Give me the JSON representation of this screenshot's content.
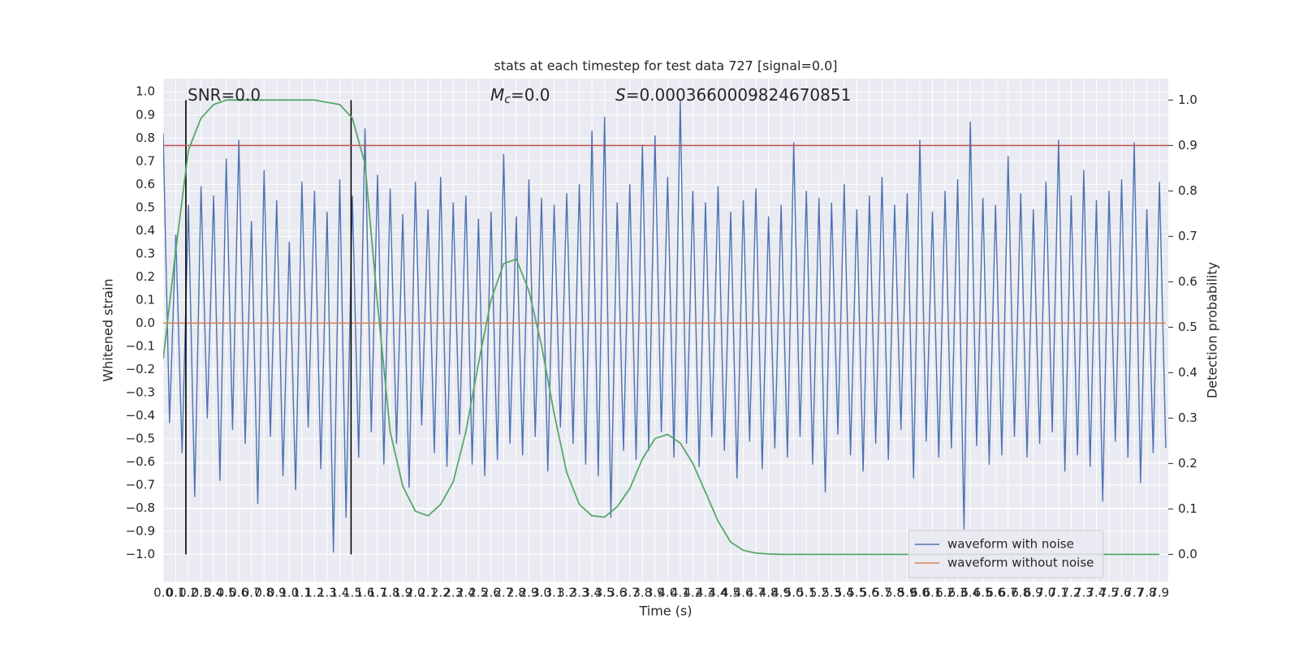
{
  "chart_data": {
    "type": "line",
    "title": "stats at each timestep for test data 727 [signal=0.0]",
    "xlabel": "Time (s)",
    "ylabel": "Whitened strain",
    "y2label": "Detection probability",
    "annotations": [
      {
        "text": "SNR=0.0"
      },
      {
        "symbol": "M",
        "subscript": "c",
        "text": "=0.0"
      },
      {
        "symbol": "S",
        "text": "=0.0003660009824670851"
      }
    ],
    "xlim": [
      0,
      7.97
    ],
    "ylim": [
      -1.118,
      1.057
    ],
    "y2lim": [
      -0.06,
      1.047
    ],
    "grid": true,
    "legend": "lower right",
    "threshold": 0.9,
    "threshold_color": "#c44e52",
    "vlines": [
      0.18,
      1.49
    ],
    "vline_span": [
      0,
      1
    ],
    "vline_color": "#000000",
    "xticks": [
      {
        "value": 0.0,
        "label": "0.0"
      },
      {
        "value": 0.1,
        "label": "0.1"
      },
      {
        "value": 0.2,
        "label": "0.2"
      },
      {
        "value": 0.3,
        "label": "0.3"
      },
      {
        "value": 0.4,
        "label": "0.4"
      },
      {
        "value": 0.5,
        "label": "0.5"
      },
      {
        "value": 0.6,
        "label": "0.6"
      },
      {
        "value": 0.7,
        "label": "0.7"
      },
      {
        "value": 0.8,
        "label": "0.8"
      },
      {
        "value": 0.9,
        "label": "0.9"
      },
      {
        "value": 1.0,
        "label": "1.0"
      },
      {
        "value": 1.1,
        "label": "1.1"
      },
      {
        "value": 1.2,
        "label": "1.2"
      },
      {
        "value": 1.3,
        "label": "1.3"
      },
      {
        "value": 1.4,
        "label": "1.4"
      },
      {
        "value": 1.5,
        "label": "1.5"
      },
      {
        "value": 1.6,
        "label": "1.6"
      },
      {
        "value": 1.7,
        "label": "1.7"
      },
      {
        "value": 1.8,
        "label": "1.8"
      },
      {
        "value": 1.9,
        "label": "1.9"
      },
      {
        "value": 2.0,
        "label": "2.0"
      },
      {
        "value": 2.1,
        "label": "2.1"
      },
      {
        "value": 2.2,
        "label": "2.2"
      },
      {
        "value": 2.3,
        "label": "2.3"
      },
      {
        "value": 2.4,
        "label": "2.4"
      },
      {
        "value": 2.5,
        "label": "2.5"
      },
      {
        "value": 2.6,
        "label": "2.6"
      },
      {
        "value": 2.7,
        "label": "2.7"
      },
      {
        "value": 2.8,
        "label": "2.8"
      },
      {
        "value": 2.9,
        "label": "2.9"
      },
      {
        "value": 3.0,
        "label": "3.0"
      },
      {
        "value": 3.1,
        "label": "3.1"
      },
      {
        "value": 3.2,
        "label": "3.2"
      },
      {
        "value": 3.3,
        "label": "3.3"
      },
      {
        "value": 3.4,
        "label": "3.4"
      },
      {
        "value": 3.5,
        "label": "3.5"
      },
      {
        "value": 3.6,
        "label": "3.6"
      },
      {
        "value": 3.7,
        "label": "3.7"
      },
      {
        "value": 3.8,
        "label": "3.8"
      },
      {
        "value": 3.9,
        "label": "3.9"
      },
      {
        "value": 4.0,
        "label": "4.0"
      },
      {
        "value": 4.1,
        "label": "4.1"
      },
      {
        "value": 4.2,
        "label": "4.2"
      },
      {
        "value": 4.3,
        "label": "4.3"
      },
      {
        "value": 4.4,
        "label": "4.4"
      },
      {
        "value": 4.5,
        "label": "4.5"
      },
      {
        "value": 4.6,
        "label": "4.6"
      },
      {
        "value": 4.7,
        "label": "4.7"
      },
      {
        "value": 4.8,
        "label": "4.8"
      },
      {
        "value": 4.9,
        "label": "4.9"
      },
      {
        "value": 5.0,
        "label": "5.0"
      },
      {
        "value": 5.1,
        "label": "5.1"
      },
      {
        "value": 5.2,
        "label": "5.2"
      },
      {
        "value": 5.3,
        "label": "5.3"
      },
      {
        "value": 5.4,
        "label": "5.4"
      },
      {
        "value": 5.5,
        "label": "5.5"
      },
      {
        "value": 5.6,
        "label": "5.6"
      },
      {
        "value": 5.7,
        "label": "5.7"
      },
      {
        "value": 5.8,
        "label": "5.8"
      },
      {
        "value": 5.9,
        "label": "5.9"
      },
      {
        "value": 6.0,
        "label": "6.0"
      },
      {
        "value": 6.1,
        "label": "6.1"
      },
      {
        "value": 6.2,
        "label": "6.2"
      },
      {
        "value": 6.3,
        "label": "6.3"
      },
      {
        "value": 6.4,
        "label": "6.4"
      },
      {
        "value": 6.5,
        "label": "6.5"
      },
      {
        "value": 6.6,
        "label": "6.6"
      },
      {
        "value": 6.7,
        "label": "6.7"
      },
      {
        "value": 6.8,
        "label": "6.8"
      },
      {
        "value": 6.9,
        "label": "6.9"
      },
      {
        "value": 7.0,
        "label": "7.0"
      },
      {
        "value": 7.1,
        "label": "7.1"
      },
      {
        "value": 7.2,
        "label": "7.2"
      },
      {
        "value": 7.3,
        "label": "7.3"
      },
      {
        "value": 7.4,
        "label": "7.4"
      },
      {
        "value": 7.5,
        "label": "7.5"
      },
      {
        "value": 7.6,
        "label": "7.6"
      },
      {
        "value": 7.7,
        "label": "7.7"
      },
      {
        "value": 7.8,
        "label": "7.8"
      },
      {
        "value": 7.9,
        "label": "7.9"
      }
    ],
    "yticks": [
      {
        "value": -1.0,
        "label": "−1.0"
      },
      {
        "value": -0.9,
        "label": "−0.9"
      },
      {
        "value": -0.8,
        "label": "−0.8"
      },
      {
        "value": -0.7,
        "label": "−0.7"
      },
      {
        "value": -0.6,
        "label": "−0.6"
      },
      {
        "value": -0.5,
        "label": "−0.5"
      },
      {
        "value": -0.4,
        "label": "−0.4"
      },
      {
        "value": -0.3,
        "label": "−0.3"
      },
      {
        "value": -0.2,
        "label": "−0.2"
      },
      {
        "value": -0.1,
        "label": "−0.1"
      },
      {
        "value": 0.0,
        "label": "0.0"
      },
      {
        "value": 0.1,
        "label": "0.1"
      },
      {
        "value": 0.2,
        "label": "0.2"
      },
      {
        "value": 0.3,
        "label": "0.3"
      },
      {
        "value": 0.4,
        "label": "0.4"
      },
      {
        "value": 0.5,
        "label": "0.5"
      },
      {
        "value": 0.6,
        "label": "0.6"
      },
      {
        "value": 0.7,
        "label": "0.7"
      },
      {
        "value": 0.8,
        "label": "0.8"
      },
      {
        "value": 0.9,
        "label": "0.9"
      },
      {
        "value": 1.0,
        "label": "1.0"
      }
    ],
    "y2ticks": [
      {
        "value": 0.0,
        "label": "0.0"
      },
      {
        "value": 0.1,
        "label": "0.1"
      },
      {
        "value": 0.2,
        "label": "0.2"
      },
      {
        "value": 0.3,
        "label": "0.3"
      },
      {
        "value": 0.4,
        "label": "0.4"
      },
      {
        "value": 0.5,
        "label": "0.5"
      },
      {
        "value": 0.6,
        "label": "0.6"
      },
      {
        "value": 0.7,
        "label": "0.7"
      },
      {
        "value": 0.8,
        "label": "0.8"
      },
      {
        "value": 0.9,
        "label": "0.9"
      },
      {
        "value": 1.0,
        "label": "1.0"
      }
    ],
    "series": [
      {
        "name": "waveform with noise",
        "color": "#4c72b0",
        "x": [
          0.0,
          0.05,
          0.1,
          0.15,
          0.2,
          0.25,
          0.3,
          0.35,
          0.4,
          0.45,
          0.5,
          0.55,
          0.6,
          0.65,
          0.7,
          0.75,
          0.8,
          0.85,
          0.9,
          0.95,
          1.0,
          1.05,
          1.1,
          1.15,
          1.2,
          1.25,
          1.3,
          1.35,
          1.4,
          1.45,
          1.5,
          1.55,
          1.6,
          1.65,
          1.7,
          1.75,
          1.8,
          1.85,
          1.9,
          1.95,
          2.0,
          2.05,
          2.1,
          2.15,
          2.2,
          2.25,
          2.3,
          2.35,
          2.4,
          2.45,
          2.5,
          2.55,
          2.6,
          2.65,
          2.7,
          2.75,
          2.8,
          2.85,
          2.9,
          2.95,
          3.0,
          3.05,
          3.1,
          3.15,
          3.2,
          3.25,
          3.3,
          3.35,
          3.4,
          3.45,
          3.5,
          3.55,
          3.6,
          3.65,
          3.7,
          3.75,
          3.8,
          3.85,
          3.9,
          3.95,
          4.0,
          4.05,
          4.1,
          4.15,
          4.2,
          4.25,
          4.3,
          4.35,
          4.4,
          4.45,
          4.5,
          4.55,
          4.6,
          4.65,
          4.7,
          4.75,
          4.8,
          4.85,
          4.9,
          4.95,
          5.0,
          5.05,
          5.1,
          5.15,
          5.2,
          5.25,
          5.3,
          5.35,
          5.4,
          5.45,
          5.5,
          5.55,
          5.6,
          5.65,
          5.7,
          5.75,
          5.8,
          5.85,
          5.9,
          5.95,
          6.0,
          6.05,
          6.1,
          6.15,
          6.2,
          6.25,
          6.3,
          6.35,
          6.4,
          6.45,
          6.5,
          6.55,
          6.6,
          6.65,
          6.7,
          6.75,
          6.8,
          6.85,
          6.9,
          6.95,
          7.0,
          7.05,
          7.1,
          7.15,
          7.2,
          7.25,
          7.3,
          7.35,
          7.4,
          7.45,
          7.5,
          7.55,
          7.6,
          7.65,
          7.7,
          7.75,
          7.8,
          7.85,
          7.9,
          7.95
        ],
        "values": [
          0.82,
          -0.43,
          0.38,
          -0.56,
          0.51,
          -0.75,
          0.59,
          -0.41,
          0.55,
          -0.68,
          0.71,
          -0.46,
          0.79,
          -0.52,
          0.44,
          -0.78,
          0.66,
          -0.49,
          0.53,
          -0.66,
          0.35,
          -0.72,
          0.61,
          -0.45,
          0.57,
          -0.63,
          0.48,
          -0.99,
          0.62,
          -0.84,
          0.55,
          -0.58,
          0.84,
          -0.47,
          0.64,
          -0.61,
          0.58,
          -0.52,
          0.47,
          -0.71,
          0.61,
          -0.44,
          0.49,
          -0.56,
          0.63,
          -0.62,
          0.52,
          -0.48,
          0.55,
          -0.61,
          0.45,
          -0.66,
          0.48,
          -0.59,
          0.73,
          -0.52,
          0.46,
          -0.57,
          0.62,
          -0.49,
          0.54,
          -0.64,
          0.51,
          -0.45,
          0.56,
          -0.52,
          0.6,
          -0.61,
          0.83,
          -0.66,
          0.89,
          -0.84,
          0.52,
          -0.55,
          0.6,
          -0.59,
          0.77,
          -0.55,
          0.81,
          -0.47,
          0.63,
          -0.58,
          0.96,
          -0.52,
          0.57,
          -0.62,
          0.52,
          -0.49,
          0.59,
          -0.55,
          0.48,
          -0.67,
          0.53,
          -0.51,
          0.58,
          -0.63,
          0.46,
          -0.54,
          0.51,
          -0.58,
          0.78,
          -0.49,
          0.57,
          -0.61,
          0.54,
          -0.73,
          0.52,
          -0.48,
          0.6,
          -0.57,
          0.49,
          -0.64,
          0.55,
          -0.52,
          0.63,
          -0.59,
          0.51,
          -0.46,
          0.56,
          -0.67,
          0.79,
          -0.51,
          0.48,
          -0.58,
          0.57,
          -0.54,
          0.62,
          -0.89,
          0.87,
          -0.53,
          0.54,
          -0.61,
          0.51,
          -0.57,
          0.72,
          -0.49,
          0.56,
          -0.58,
          0.49,
          -0.52,
          0.61,
          -0.47,
          0.79,
          -0.64,
          0.55,
          -0.57,
          0.66,
          -0.62,
          0.53,
          -0.77,
          0.57,
          -0.51,
          0.62,
          -0.58,
          0.78,
          -0.69,
          0.49,
          -0.56,
          0.61,
          -0.54
        ]
      },
      {
        "name": "waveform without noise",
        "color": "#dd8452",
        "x": [
          0.0,
          7.95
        ],
        "values": [
          0.0,
          0.0
        ]
      },
      {
        "color": "#55a868",
        "axis": "y2",
        "x": [
          0.0,
          0.1,
          0.2,
          0.3,
          0.4,
          0.5,
          0.6,
          0.7,
          0.8,
          0.9,
          1.0,
          1.1,
          1.2,
          1.3,
          1.4,
          1.5,
          1.6,
          1.7,
          1.8,
          1.9,
          2.0,
          2.1,
          2.2,
          2.3,
          2.4,
          2.5,
          2.6,
          2.7,
          2.8,
          2.9,
          3.0,
          3.1,
          3.2,
          3.3,
          3.4,
          3.5,
          3.6,
          3.7,
          3.8,
          3.9,
          4.0,
          4.1,
          4.2,
          4.3,
          4.4,
          4.5,
          4.6,
          4.7,
          4.8,
          4.9,
          5.0,
          5.1,
          5.2,
          5.3,
          5.4,
          5.5,
          5.6,
          5.7,
          5.8,
          5.9,
          6.0,
          6.1,
          6.2,
          6.3,
          6.4,
          6.5,
          6.6,
          6.7,
          6.8,
          6.9,
          7.0,
          7.1,
          7.2,
          7.3,
          7.4,
          7.5,
          7.6,
          7.7,
          7.8,
          7.9
        ],
        "values": [
          0.43,
          0.67,
          0.89,
          0.96,
          0.99,
          1.0,
          1.0,
          1.0,
          1.0,
          1.0,
          1.0,
          1.0,
          1.0,
          0.995,
          0.99,
          0.96,
          0.86,
          0.55,
          0.27,
          0.15,
          0.095,
          0.085,
          0.11,
          0.16,
          0.27,
          0.42,
          0.56,
          0.64,
          0.65,
          0.58,
          0.46,
          0.31,
          0.18,
          0.11,
          0.085,
          0.082,
          0.105,
          0.145,
          0.21,
          0.255,
          0.264,
          0.245,
          0.2,
          0.137,
          0.073,
          0.027,
          0.009,
          0.003,
          0.001,
          0.0,
          0.0,
          0.0,
          0.0,
          0.0,
          0.0,
          0.0,
          0.0,
          0.0,
          0.0,
          0.0,
          0.0,
          0.0,
          0.0,
          0.0,
          0.0,
          0.0,
          0.0,
          0.0,
          0.0,
          0.0,
          0.0,
          0.0,
          0.0,
          0.0,
          0.0,
          0.0,
          0.0,
          0.0,
          0.0,
          0.0
        ]
      }
    ]
  }
}
